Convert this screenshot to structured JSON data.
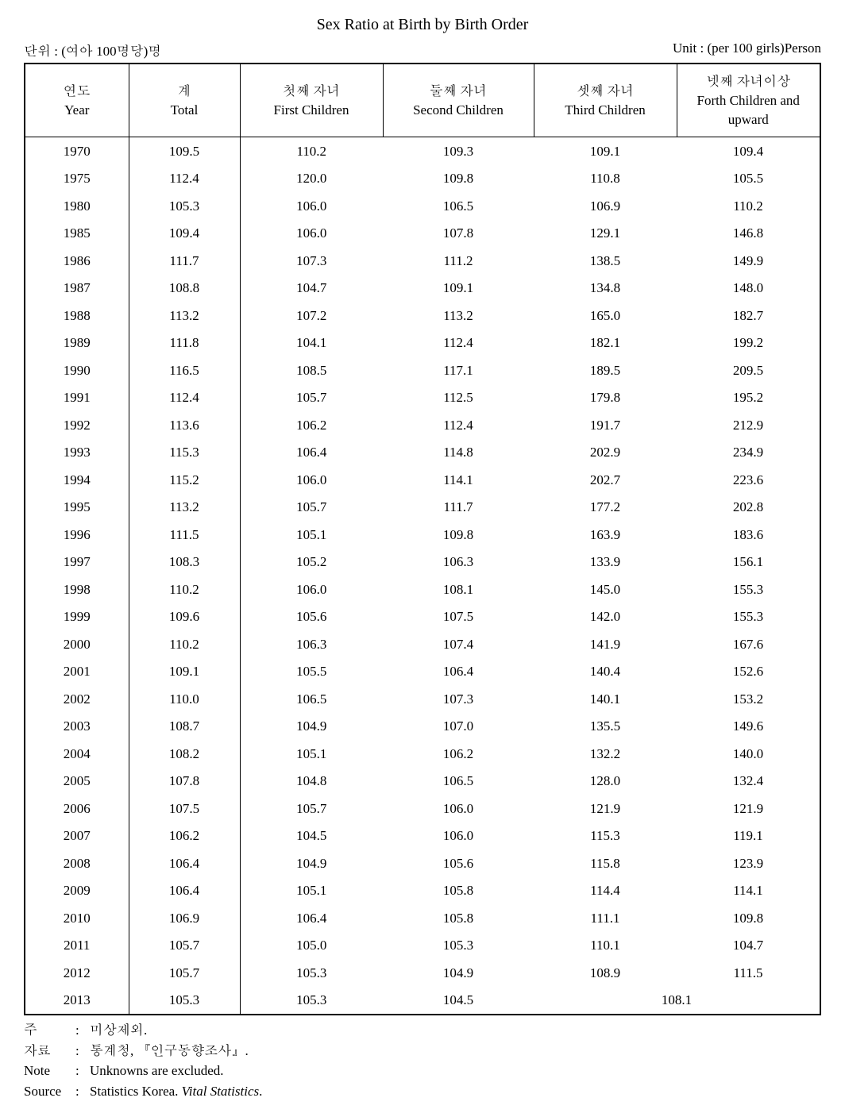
{
  "title": "Sex Ratio at Birth by Birth Order",
  "unit_left": "단위 : (여아 100명당)명",
  "unit_right": "Unit : (per 100 girls)Person",
  "columns": [
    {
      "kr": "연도",
      "en": "Year"
    },
    {
      "kr": "계",
      "en": "Total"
    },
    {
      "kr": "첫째 자녀",
      "en": "First Children"
    },
    {
      "kr": "둘째 자녀",
      "en": "Second Children"
    },
    {
      "kr": "셋째 자녀",
      "en": "Third Children"
    },
    {
      "kr": "넷째 자녀이상",
      "en": "Forth Children and upward"
    }
  ],
  "rows": [
    {
      "year": "1970",
      "total": "109.5",
      "first": "110.2",
      "second": "109.3",
      "third": "109.1",
      "fourth": "109.4"
    },
    {
      "year": "1975",
      "total": "112.4",
      "first": "120.0",
      "second": "109.8",
      "third": "110.8",
      "fourth": "105.5"
    },
    {
      "year": "1980",
      "total": "105.3",
      "first": "106.0",
      "second": "106.5",
      "third": "106.9",
      "fourth": "110.2"
    },
    {
      "year": "1985",
      "total": "109.4",
      "first": "106.0",
      "second": "107.8",
      "third": "129.1",
      "fourth": "146.8"
    },
    {
      "year": "1986",
      "total": "111.7",
      "first": "107.3",
      "second": "111.2",
      "third": "138.5",
      "fourth": "149.9"
    },
    {
      "year": "1987",
      "total": "108.8",
      "first": "104.7",
      "second": "109.1",
      "third": "134.8",
      "fourth": "148.0"
    },
    {
      "year": "1988",
      "total": "113.2",
      "first": "107.2",
      "second": "113.2",
      "third": "165.0",
      "fourth": "182.7"
    },
    {
      "year": "1989",
      "total": "111.8",
      "first": "104.1",
      "second": "112.4",
      "third": "182.1",
      "fourth": "199.2"
    },
    {
      "year": "1990",
      "total": "116.5",
      "first": "108.5",
      "second": "117.1",
      "third": "189.5",
      "fourth": "209.5"
    },
    {
      "year": "1991",
      "total": "112.4",
      "first": "105.7",
      "second": "112.5",
      "third": "179.8",
      "fourth": "195.2"
    },
    {
      "year": "1992",
      "total": "113.6",
      "first": "106.2",
      "second": "112.4",
      "third": "191.7",
      "fourth": "212.9"
    },
    {
      "year": "1993",
      "total": "115.3",
      "first": "106.4",
      "second": "114.8",
      "third": "202.9",
      "fourth": "234.9"
    },
    {
      "year": "1994",
      "total": "115.2",
      "first": "106.0",
      "second": "114.1",
      "third": "202.7",
      "fourth": "223.6"
    },
    {
      "year": "1995",
      "total": "113.2",
      "first": "105.7",
      "second": "111.7",
      "third": "177.2",
      "fourth": "202.8"
    },
    {
      "year": "1996",
      "total": "111.5",
      "first": "105.1",
      "second": "109.8",
      "third": "163.9",
      "fourth": "183.6"
    },
    {
      "year": "1997",
      "total": "108.3",
      "first": "105.2",
      "second": "106.3",
      "third": "133.9",
      "fourth": "156.1"
    },
    {
      "year": "1998",
      "total": "110.2",
      "first": "106.0",
      "second": "108.1",
      "third": "145.0",
      "fourth": "155.3"
    },
    {
      "year": "1999",
      "total": "109.6",
      "first": "105.6",
      "second": "107.5",
      "third": "142.0",
      "fourth": "155.3"
    },
    {
      "year": "2000",
      "total": "110.2",
      "first": "106.3",
      "second": "107.4",
      "third": "141.9",
      "fourth": "167.6"
    },
    {
      "year": "2001",
      "total": "109.1",
      "first": "105.5",
      "second": "106.4",
      "third": "140.4",
      "fourth": "152.6"
    },
    {
      "year": "2002",
      "total": "110.0",
      "first": "106.5",
      "second": "107.3",
      "third": "140.1",
      "fourth": "153.2"
    },
    {
      "year": "2003",
      "total": "108.7",
      "first": "104.9",
      "second": "107.0",
      "third": "135.5",
      "fourth": "149.6"
    },
    {
      "year": "2004",
      "total": "108.2",
      "first": "105.1",
      "second": "106.2",
      "third": "132.2",
      "fourth": "140.0"
    },
    {
      "year": "2005",
      "total": "107.8",
      "first": "104.8",
      "second": "106.5",
      "third": "128.0",
      "fourth": "132.4"
    },
    {
      "year": "2006",
      "total": "107.5",
      "first": "105.7",
      "second": "106.0",
      "third": "121.9",
      "fourth": "121.9"
    },
    {
      "year": "2007",
      "total": "106.2",
      "first": "104.5",
      "second": "106.0",
      "third": "115.3",
      "fourth": "119.1"
    },
    {
      "year": "2008",
      "total": "106.4",
      "first": "104.9",
      "second": "105.6",
      "third": "115.8",
      "fourth": "123.9"
    },
    {
      "year": "2009",
      "total": "106.4",
      "first": "105.1",
      "second": "105.8",
      "third": "114.4",
      "fourth": "114.1"
    },
    {
      "year": "2010",
      "total": "106.9",
      "first": "106.4",
      "second": "105.8",
      "third": "111.1",
      "fourth": "109.8"
    },
    {
      "year": "2011",
      "total": "105.7",
      "first": "105.0",
      "second": "105.3",
      "third": "110.1",
      "fourth": "104.7"
    },
    {
      "year": "2012",
      "total": "105.7",
      "first": "105.3",
      "second": "104.9",
      "third": "108.9",
      "fourth": "111.5"
    }
  ],
  "last_row": {
    "year": "2013",
    "total": "105.3",
    "first": "105.3",
    "second": "104.5",
    "merged": "108.1"
  },
  "notes": {
    "note_kr_label": "주",
    "note_kr_text": "미상제외.",
    "source_kr_label": "자료",
    "source_kr_text": "통계청, 『인구동향조사』.",
    "note_en_label": "Note",
    "note_en_text": "Unknowns are excluded.",
    "source_en_label": "Source",
    "source_en_text_prefix": "Statistics Korea. ",
    "source_en_text_italic": "Vital Statistics",
    "source_en_text_suffix": "."
  }
}
